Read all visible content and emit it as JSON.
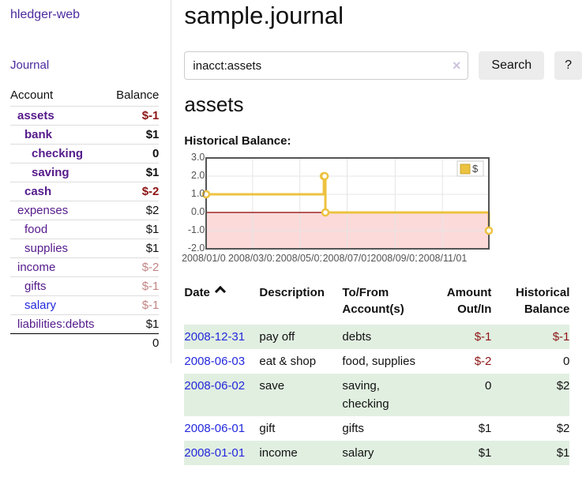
{
  "app": {
    "brand": "hledger-web",
    "nav_journal": "Journal"
  },
  "sidebar": {
    "table": {
      "headers": [
        "Account",
        "Balance"
      ],
      "rows": [
        {
          "account": "assets",
          "indent": 1,
          "bold": true,
          "balance": "$-1",
          "style": "neg-strong"
        },
        {
          "account": "bank",
          "indent": 2,
          "bold": true,
          "balance": "$1",
          "style": ""
        },
        {
          "account": "checking",
          "indent": 3,
          "bold": true,
          "balance": "0",
          "style": ""
        },
        {
          "account": "saving",
          "indent": 3,
          "bold": true,
          "balance": "$1",
          "style": ""
        },
        {
          "account": "cash",
          "indent": 2,
          "bold": true,
          "balance": "$-2",
          "style": "neg-strong"
        },
        {
          "account": "expenses",
          "indent": 1,
          "bold": false,
          "balance": "$2",
          "style": ""
        },
        {
          "account": "food",
          "indent": 2,
          "bold": false,
          "balance": "$1",
          "style": ""
        },
        {
          "account": "supplies",
          "indent": 2,
          "bold": false,
          "balance": "$1",
          "style": ""
        },
        {
          "account": "income",
          "indent": 1,
          "bold": false,
          "balance": "$-2",
          "style": "neg-faint"
        },
        {
          "account": "gifts",
          "indent": 2,
          "bold": false,
          "balance": "$-1",
          "style": "neg-faint"
        },
        {
          "account": "salary",
          "indent": 2,
          "bold": false,
          "balance": "$-1",
          "style": "neg-faint",
          "link": "blue"
        },
        {
          "account": "liabilities:debts",
          "indent": 1,
          "bold": false,
          "balance": "$1",
          "style": ""
        }
      ],
      "total": "0"
    }
  },
  "main": {
    "title": "sample.journal",
    "search": {
      "value": "inacct:assets",
      "clear_icon": "×",
      "button_label": "Search",
      "help_label": "?"
    },
    "account_heading": "assets",
    "chart_label": "Historical Balance:"
  },
  "chart_data": {
    "type": "line",
    "step": true,
    "title": "Historical Balance",
    "legend": "$",
    "legend_position": "top-right",
    "x_range": [
      "2008/01/01",
      "2008/12/31"
    ],
    "ylim": [
      -2,
      3
    ],
    "y_ticks": [
      3.0,
      2.0,
      1.0,
      0.0,
      -1.0,
      -2.0
    ],
    "x_ticks": [
      "2008/01/01",
      "2008/03/01",
      "2008/05/01",
      "2008/07/01",
      "2008/09/01",
      "2008/11/01"
    ],
    "series": [
      {
        "name": "$",
        "points": [
          {
            "date": "2008/01/01",
            "value": 1
          },
          {
            "date": "2008/06/01",
            "value": 2
          },
          {
            "date": "2008/06/02",
            "value": 2
          },
          {
            "date": "2008/06/03",
            "value": 0
          },
          {
            "date": "2008/12/31",
            "value": -1
          }
        ]
      }
    ]
  },
  "register": {
    "headers": [
      "Date",
      "Description",
      "To/From Account(s)",
      "Amount Out/In",
      "Historical Balance"
    ],
    "sort": {
      "column": "Date",
      "direction": "ascending"
    },
    "rows": [
      {
        "date": "2008-12-31",
        "description": "pay off",
        "accounts": "debts",
        "amount": "$-1",
        "amount_negative": true,
        "balance": "$-1",
        "balance_negative": true
      },
      {
        "date": "2008-06-03",
        "description": "eat & shop",
        "accounts": "food, supplies",
        "amount": "$-2",
        "amount_negative": true,
        "balance": "0",
        "balance_negative": false
      },
      {
        "date": "2008-06-02",
        "description": "save",
        "accounts": "saving, checking",
        "amount": "0",
        "amount_negative": false,
        "balance": "$2",
        "balance_negative": false
      },
      {
        "date": "2008-06-01",
        "description": "gift",
        "accounts": "gifts",
        "amount": "$1",
        "amount_negative": false,
        "balance": "$2",
        "balance_negative": false
      },
      {
        "date": "2008-01-01",
        "description": "income",
        "accounts": "salary",
        "amount": "$1",
        "amount_negative": false,
        "balance": "$1",
        "balance_negative": false
      }
    ]
  },
  "colors": {
    "brand_purple": "#4b2a9e",
    "link_purple": "#551a8b",
    "link_blue": "#2328dc",
    "negative_strong": "#8d1414",
    "negative_faint": "#c28585",
    "stripe_green": "#e1efe1",
    "chart_gold": "#edc240",
    "chart_gold_dark": "#c7a532",
    "chart_negative_fill": "#fcdada",
    "chart_zero_line": "#8b0000",
    "chart_border": "#545454",
    "grid_line": "#e5e5e5",
    "button_bg": "#ececec",
    "divider": "#dddddd"
  }
}
